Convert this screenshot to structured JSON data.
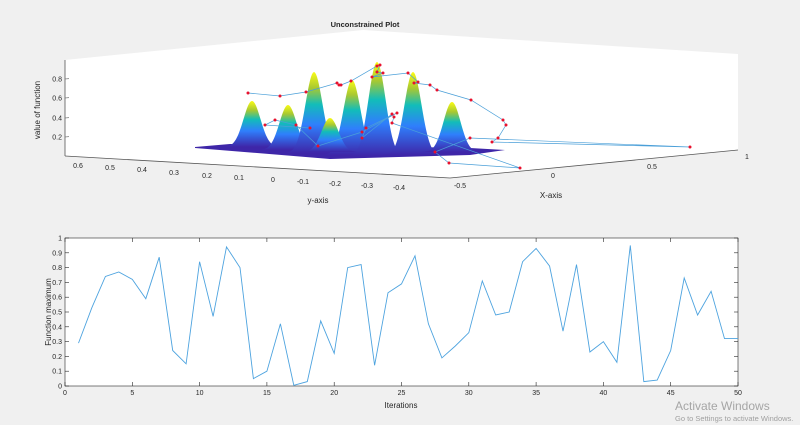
{
  "chart_data": [
    {
      "type": "surface3d",
      "title": "Unconstrained Plot",
      "xlabel": "X-axis",
      "ylabel": "y-axis",
      "zlabel": "value of function",
      "x_ticks": [
        "-0.5",
        "0",
        "0.5",
        "1"
      ],
      "y_ticks": [
        "0.6",
        "0.5",
        "0.4",
        "0.3",
        "0.2",
        "0.1",
        "0",
        "-0.1",
        "-0.2",
        "-0.3",
        "-0.4"
      ],
      "z_ticks": [
        "0.2",
        "0.4",
        "0.6",
        "0.8"
      ],
      "colormap": [
        "#3e26a8",
        "#2f7ffc",
        "#12bdb9",
        "#a8c831",
        "#f9fb15"
      ],
      "marker_color": "#e8112d",
      "line_color": "#4a9fd8"
    },
    {
      "type": "line",
      "xlabel": "Iterations",
      "ylabel": "Function maximum",
      "xlim": [
        0,
        50
      ],
      "ylim": [
        0,
        1
      ],
      "x_ticks": [
        "0",
        "5",
        "10",
        "15",
        "20",
        "25",
        "30",
        "35",
        "40",
        "45",
        "50"
      ],
      "y_ticks": [
        "0",
        "0.1",
        "0.2",
        "0.3",
        "0.4",
        "0.5",
        "0.6",
        "0.7",
        "0.8",
        "0.9",
        "1"
      ],
      "line_color": "#4da3df",
      "x": [
        1,
        2,
        3,
        4,
        5,
        6,
        7,
        8,
        9,
        10,
        11,
        12,
        13,
        14,
        15,
        16,
        17,
        18,
        19,
        20,
        21,
        22,
        23,
        24,
        25,
        26,
        27,
        28,
        29,
        30,
        31,
        32,
        33,
        34,
        35,
        36,
        37,
        38,
        39,
        40,
        41,
        42,
        43,
        44,
        45,
        46,
        47,
        48,
        49,
        50
      ],
      "y": [
        0.29,
        0.53,
        0.74,
        0.77,
        0.72,
        0.59,
        0.87,
        0.24,
        0.15,
        0.84,
        0.47,
        0.94,
        0.8,
        0.05,
        0.1,
        0.42,
        0.005,
        0.03,
        0.44,
        0.22,
        0.8,
        0.82,
        0.14,
        0.63,
        0.69,
        0.88,
        0.42,
        0.19,
        0.27,
        0.36,
        0.71,
        0.48,
        0.5,
        0.84,
        0.93,
        0.81,
        0.37,
        0.82,
        0.23,
        0.3,
        0.16,
        0.95,
        0.03,
        0.04,
        0.24,
        0.73,
        0.48,
        0.64,
        0.32,
        0.32
      ]
    }
  ],
  "watermark": {
    "title": "Activate Windows",
    "subtitle": "Go to Settings to activate Windows."
  }
}
